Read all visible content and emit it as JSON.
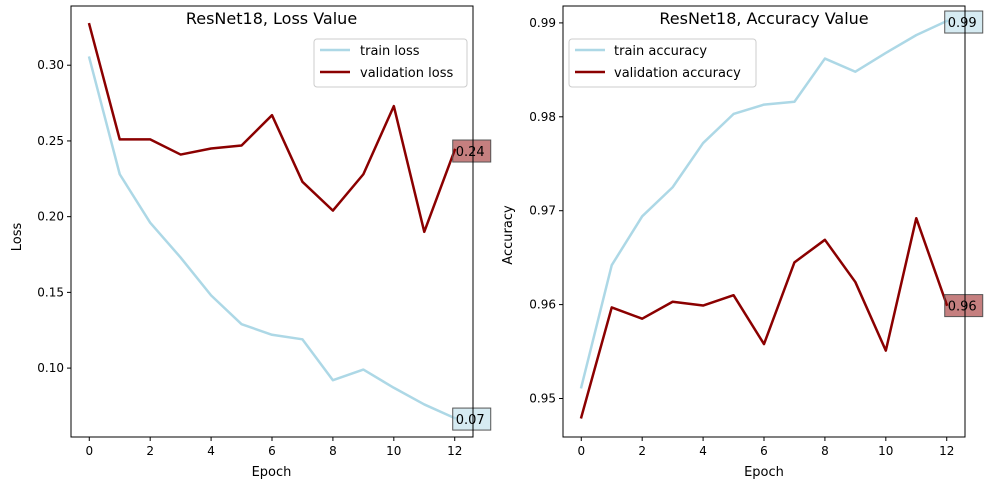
{
  "chart_data": [
    {
      "type": "line",
      "title": "ResNet18, Loss Value",
      "xlabel": "Epoch",
      "ylabel": "Loss",
      "xlim": [
        -0.6,
        12.6
      ],
      "ylim": [
        0.0545,
        0.3391
      ],
      "x_ticks": [
        0,
        2,
        4,
        6,
        8,
        10,
        12
      ],
      "y_ticks": [
        0.1,
        0.15,
        0.2,
        0.25,
        0.3
      ],
      "y_tick_labels": [
        "0.10",
        "0.15",
        "0.20",
        "0.25",
        "0.30"
      ],
      "x": [
        0,
        1,
        2,
        3,
        4,
        5,
        6,
        7,
        8,
        9,
        10,
        11,
        12
      ],
      "legend_position": "top-right",
      "series": [
        {
          "name": "train loss",
          "color": "#add8e6",
          "values": [
            0.305,
            0.228,
            0.196,
            0.173,
            0.148,
            0.129,
            0.122,
            0.119,
            0.092,
            0.099,
            0.087,
            0.076,
            0.067
          ]
        },
        {
          "name": "validation loss",
          "color": "#8b0000",
          "values": [
            0.327,
            0.251,
            0.251,
            0.241,
            0.245,
            0.247,
            0.267,
            0.223,
            0.204,
            0.228,
            0.273,
            0.19,
            0.244
          ]
        }
      ],
      "annotations": [
        {
          "series": 0,
          "label": "0.07",
          "box_color": "#add8e6"
        },
        {
          "series": 1,
          "label": "0.24",
          "box_color": "#8b0000"
        }
      ]
    },
    {
      "type": "line",
      "title": "ResNet18, Accuracy Value",
      "xlabel": "Epoch",
      "ylabel": "Accuracy",
      "xlim": [
        -0.6,
        12.6
      ],
      "ylim": [
        0.9459,
        0.9918
      ],
      "x_ticks": [
        0,
        2,
        4,
        6,
        8,
        10,
        12
      ],
      "y_ticks": [
        0.95,
        0.96,
        0.97,
        0.98,
        0.99
      ],
      "y_tick_labels": [
        "0.95",
        "0.96",
        "0.97",
        "0.98",
        "0.99"
      ],
      "x": [
        0,
        1,
        2,
        3,
        4,
        5,
        6,
        7,
        8,
        9,
        10,
        11,
        12
      ],
      "legend_position": "top-left",
      "series": [
        {
          "name": "train accuracy",
          "color": "#add8e6",
          "values": [
            0.9512,
            0.9642,
            0.9694,
            0.9725,
            0.9772,
            0.9803,
            0.9813,
            0.9816,
            0.9862,
            0.9848,
            0.9868,
            0.9887,
            0.9902
          ]
        },
        {
          "name": "validation accuracy",
          "color": "#8b0000",
          "values": [
            0.948,
            0.9597,
            0.9585,
            0.9603,
            0.9599,
            0.961,
            0.9558,
            0.9645,
            0.9669,
            0.9624,
            0.9551,
            0.9692,
            0.96
          ]
        }
      ],
      "annotations": [
        {
          "series": 0,
          "label": "0.99",
          "box_color": "#add8e6"
        },
        {
          "series": 1,
          "label": "0.96",
          "box_color": "#8b0000"
        }
      ]
    }
  ]
}
